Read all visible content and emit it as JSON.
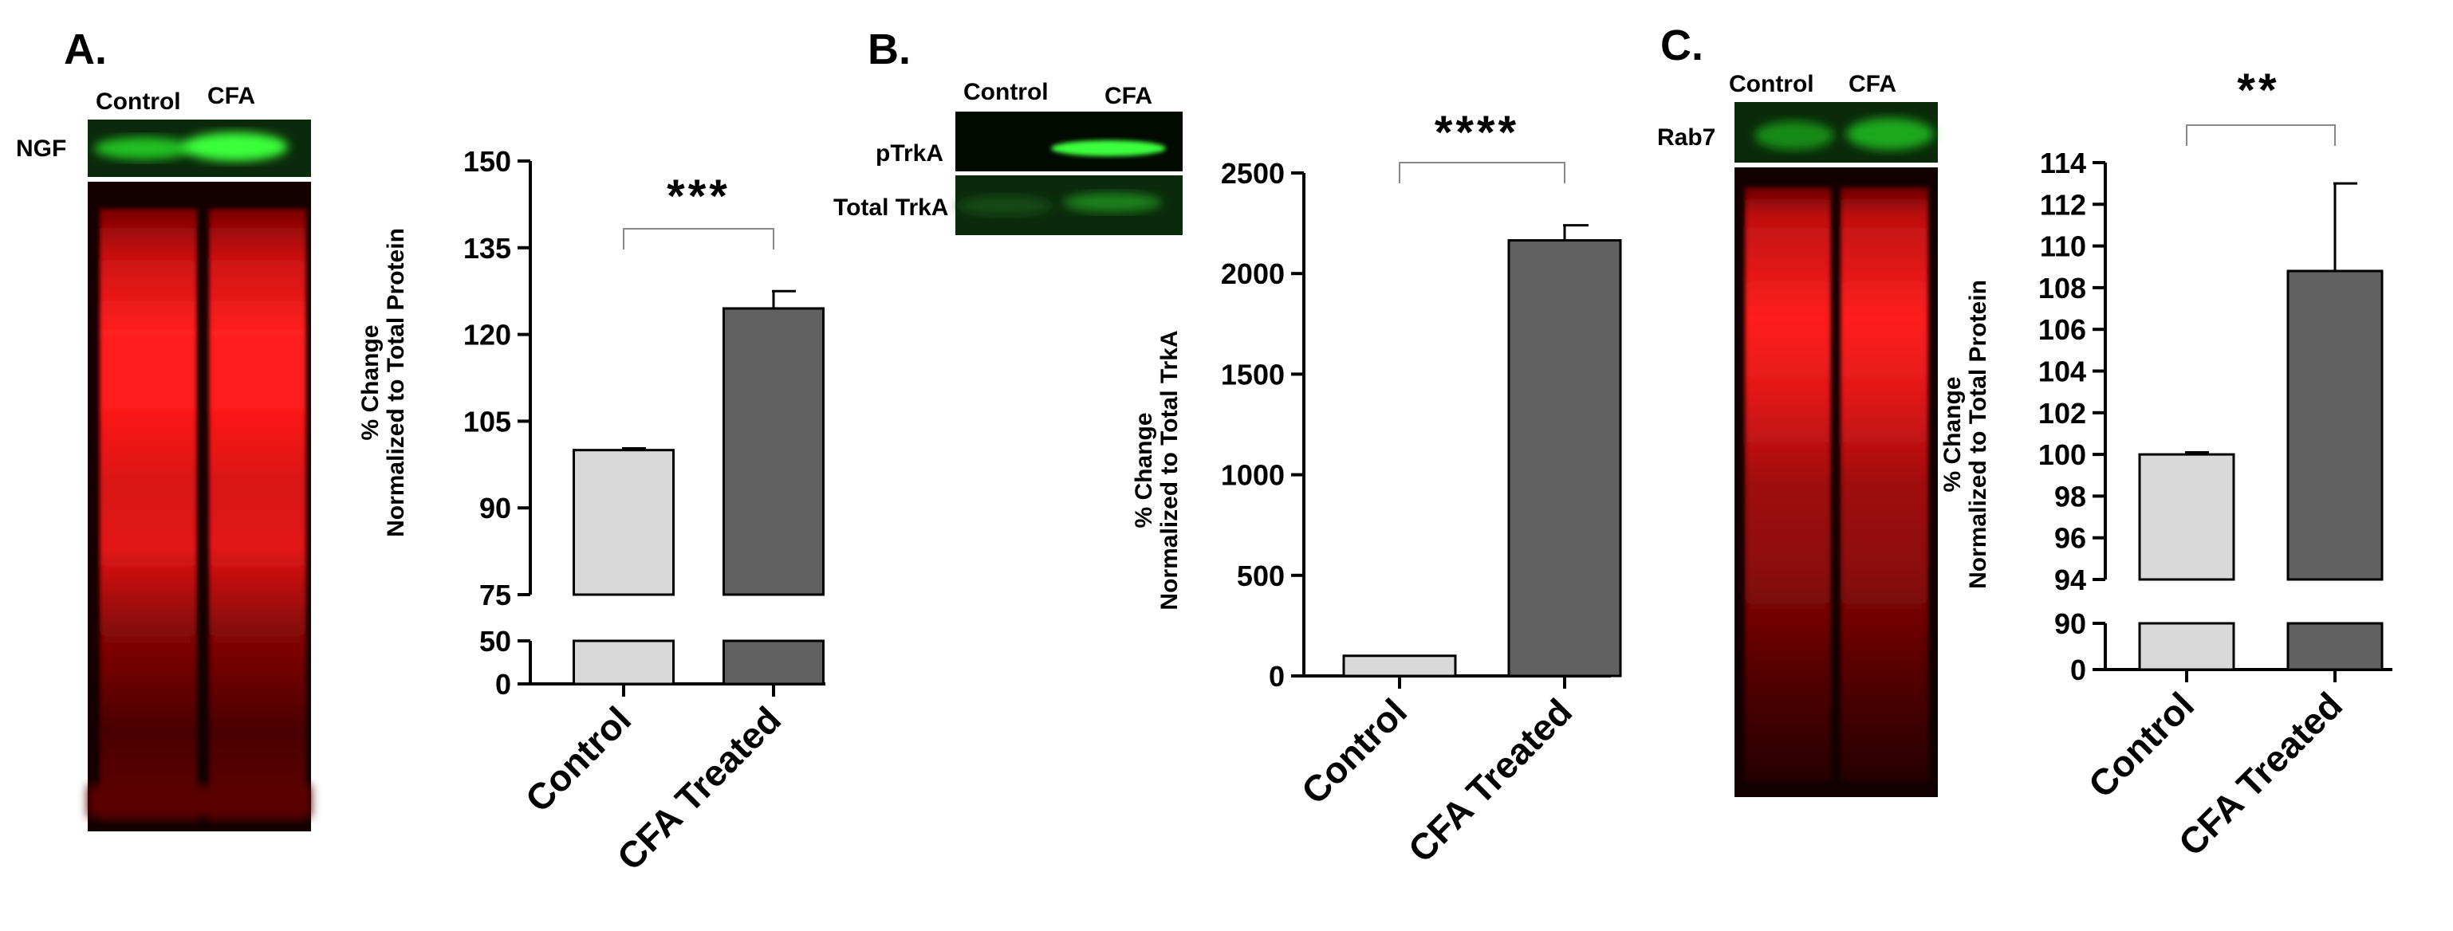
{
  "panels": [
    {
      "letter": "A.",
      "blot": {
        "lane_labels": [
          "Control",
          "CFA"
        ],
        "strip_labels": [
          "NGF"
        ]
      },
      "chart_data": {
        "type": "bar",
        "categories": [
          "Control",
          "CFA Treated"
        ],
        "values": [
          100,
          124.5
        ],
        "errors": [
          0.3,
          3
        ],
        "colors": [
          "#d9d9d9",
          "#616161"
        ],
        "ylabel": [
          "% Change",
          "Normalized to Total Protein"
        ],
        "yticks_upper": [
          75,
          90,
          105,
          120,
          135,
          150
        ],
        "yticks_lower": [
          0,
          50
        ],
        "ylim": [
          0,
          150
        ],
        "axis_break": [
          50,
          75
        ],
        "significance": "***"
      }
    },
    {
      "letter": "B.",
      "blot": {
        "lane_labels": [
          "Control",
          "CFA"
        ],
        "strip_labels": [
          "pTrkA",
          "Total TrkA"
        ]
      },
      "chart_data": {
        "type": "bar",
        "categories": [
          "Control",
          "CFA Treated"
        ],
        "values": [
          100,
          2165
        ],
        "errors": [
          0,
          75
        ],
        "colors": [
          "#d9d9d9",
          "#616161"
        ],
        "ylabel": [
          "% Change",
          "Normalized to Total TrkA"
        ],
        "yticks": [
          0,
          500,
          1000,
          1500,
          2000,
          2500
        ],
        "ylim": [
          0,
          2500
        ],
        "significance": "****"
      }
    },
    {
      "letter": "C.",
      "blot": {
        "lane_labels": [
          "Control",
          "CFA"
        ],
        "strip_labels": [
          "Rab7"
        ]
      },
      "chart_data": {
        "type": "bar",
        "categories": [
          "Control",
          "CFA Treated"
        ],
        "values": [
          100,
          108.8
        ],
        "errors": [
          0.1,
          4.2
        ],
        "colors": [
          "#d9d9d9",
          "#616161"
        ],
        "ylabel": [
          "% Change",
          "Normalized to Total Protein"
        ],
        "yticks_upper": [
          94,
          96,
          98,
          100,
          102,
          104,
          106,
          108,
          110,
          112,
          114
        ],
        "yticks_lower": [
          0,
          90
        ],
        "ylim": [
          0,
          114
        ],
        "axis_break": [
          90,
          94
        ],
        "significance": "**"
      }
    }
  ]
}
